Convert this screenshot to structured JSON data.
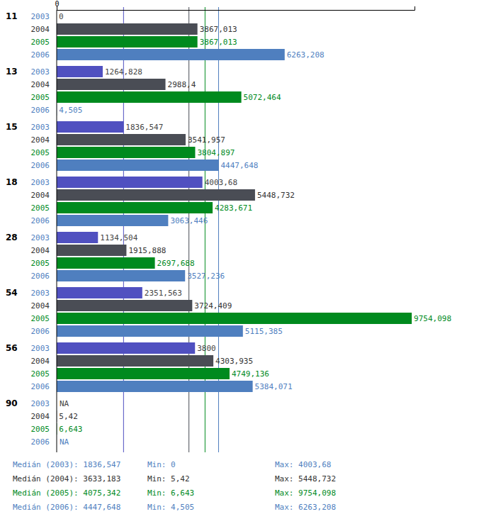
{
  "chart_data": {
    "type": "bar",
    "orientation": "horizontal",
    "data_labels": true,
    "categories": [
      "11",
      "13",
      "15",
      "18",
      "28",
      "54",
      "56",
      "90"
    ],
    "xlim": [
      0,
      9830
    ],
    "xticks": [
      0
    ],
    "series": [
      {
        "name": "2003",
        "color": "#5050c0",
        "values": [
          0,
          1264.828,
          1836.547,
          4003.68,
          1134.504,
          2351.563,
          3800,
          null
        ],
        "value_labels": [
          "0",
          "1264,828",
          "1836,547",
          "4003,68",
          "1134,504",
          "2351,563",
          "3800",
          "NA"
        ],
        "median_caption": "Medián (2003):",
        "median": {
          "value": 1836.547,
          "label": "1836,547"
        },
        "min_caption": "Min:",
        "min": {
          "value": 0,
          "label": "0"
        },
        "max_caption": "Max:",
        "max": {
          "value": 4003.68,
          "label": "4003,68"
        }
      },
      {
        "name": "2004",
        "color": "#4a4d55",
        "values": [
          3867.013,
          2988.4,
          3541.957,
          5448.732,
          1915.888,
          3724.409,
          4303.935,
          5.42
        ],
        "value_labels": [
          "3867,013",
          "2988,4",
          "3541,957",
          "5448,732",
          "1915,888",
          "3724,409",
          "4303,935",
          "5,42"
        ],
        "median_caption": "Medián (2004):",
        "median": {
          "value": 3633.183,
          "label": "3633,183"
        },
        "min_caption": "Min:",
        "min": {
          "value": 5.42,
          "label": "5,42"
        },
        "max_caption": "Max:",
        "max": {
          "value": 5448.732,
          "label": "5448,732"
        }
      },
      {
        "name": "2005",
        "color": "#008a1e",
        "values": [
          3867.013,
          5072.464,
          3804.897,
          4283.671,
          2697.688,
          9754.098,
          4749.136,
          6.643
        ],
        "value_labels": [
          "3867,013",
          "5072,464",
          "3804,897",
          "4283,671",
          "2697,688",
          "9754,098",
          "4749,136",
          "6,643"
        ],
        "median_caption": "Medián (2005):",
        "median": {
          "value": 4075.342,
          "label": "4075,342"
        },
        "min_caption": "Min:",
        "min": {
          "value": 6.643,
          "label": "6,643"
        },
        "max_caption": "Max:",
        "max": {
          "value": 9754.098,
          "label": "9754,098"
        }
      },
      {
        "name": "2006",
        "color": "#4f7fbf",
        "values": [
          6263.208,
          4.505,
          4447.648,
          3063.446,
          3527.236,
          5115.385,
          5384.071,
          null
        ],
        "value_labels": [
          "6263,208",
          "4,505",
          "4447,648",
          "3063,446",
          "3527,236",
          "5115,385",
          "5384,071",
          "NA"
        ],
        "median_caption": "Medián (2006):",
        "median": {
          "value": 4447.648,
          "label": "4447,648"
        },
        "min_caption": "Min:",
        "min": {
          "value": 4.505,
          "label": "4,505"
        },
        "max_caption": "Max:",
        "max": {
          "value": 6263.208,
          "label": "6263,208"
        }
      }
    ]
  }
}
